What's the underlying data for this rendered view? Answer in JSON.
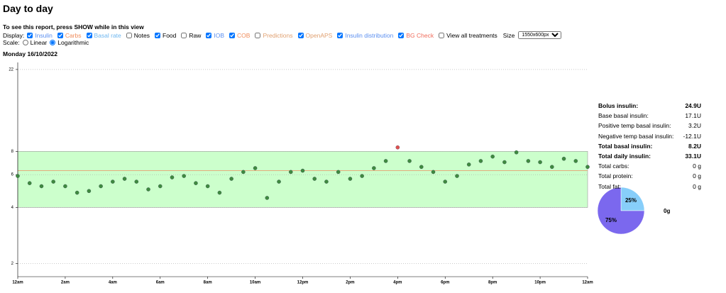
{
  "header": {
    "title": "Day to day"
  },
  "report": {
    "instruction": "To see this report, press SHOW while in this view"
  },
  "display": {
    "label": "Display:",
    "options": [
      {
        "label": "Insulin",
        "checked": true,
        "color": "#5b8ff0"
      },
      {
        "label": "Carbs",
        "checked": true,
        "color": "#f08c5b"
      },
      {
        "label": "Basal rate",
        "checked": true,
        "color": "#6fb7f0"
      },
      {
        "label": "Notes",
        "checked": false,
        "color": "#000000"
      },
      {
        "label": "Food",
        "checked": true,
        "color": "#000000"
      },
      {
        "label": "Raw",
        "checked": false,
        "color": "#000000"
      },
      {
        "label": "IOB",
        "checked": true,
        "color": "#5b8ff0"
      },
      {
        "label": "COB",
        "checked": true,
        "color": "#f08c5b"
      },
      {
        "label": "Predictions",
        "checked": false,
        "color": "#e0a070"
      },
      {
        "label": "OpenAPS",
        "checked": true,
        "color": "#e0a070"
      },
      {
        "label": "Insulin distribution",
        "checked": true,
        "color": "#5b8ff0"
      },
      {
        "label": "BG Check",
        "checked": true,
        "color": "#f06c5b"
      },
      {
        "label": "View all treatments",
        "checked": false,
        "color": "#000000"
      }
    ],
    "size_label": "Size",
    "size_value": "1550x600px"
  },
  "scale": {
    "label": "Scale:",
    "options": [
      {
        "label": "Linear",
        "checked": false
      },
      {
        "label": "Logarithmic",
        "checked": true
      }
    ]
  },
  "date": "Monday 16/10/2022",
  "chart_data": {
    "type": "scatter",
    "log_scale": true,
    "x": [
      0,
      0.5,
      1,
      1.5,
      2,
      2.5,
      3,
      3.5,
      4,
      4.5,
      5,
      5.5,
      6,
      6.5,
      7,
      7.5,
      8,
      8.5,
      9,
      9.5,
      10,
      10.5,
      11,
      11.5,
      12,
      12.5,
      13,
      13.5,
      14,
      14.5,
      15,
      15.5,
      16,
      16.5,
      17,
      17.5,
      18,
      18.5,
      19,
      19.5,
      20,
      20.5,
      21,
      21.5,
      22,
      22.5,
      23,
      23.5,
      24
    ],
    "values": [
      5.9,
      5.4,
      5.2,
      5.5,
      5.2,
      4.8,
      4.9,
      5.2,
      5.5,
      5.7,
      5.5,
      5.0,
      5.2,
      5.8,
      5.9,
      5.4,
      5.2,
      4.8,
      5.7,
      6.2,
      6.5,
      4.5,
      5.5,
      6.2,
      6.3,
      5.7,
      5.5,
      6.2,
      5.7,
      5.9,
      6.5,
      7.1,
      8.4,
      7.1,
      6.6,
      6.2,
      5.5,
      5.9,
      6.8,
      7.1,
      7.5,
      7.0,
      7.9,
      7.1,
      7.0,
      6.6,
      7.3,
      7.1,
      6.6
    ],
    "color": "#3f8a3f",
    "high_color": "#e05050",
    "target_range": [
      4,
      8
    ],
    "target_color": "#ccffcc",
    "target_line": 6.3,
    "target_line_color": "#e8a070",
    "xlim": [
      0,
      24
    ],
    "xticks": [
      {
        "value": 0,
        "label": "12am"
      },
      {
        "value": 2,
        "label": "2am"
      },
      {
        "value": 4,
        "label": "4am"
      },
      {
        "value": 6,
        "label": "6am"
      },
      {
        "value": 8,
        "label": "8am"
      },
      {
        "value": 10,
        "label": "10am"
      },
      {
        "value": 12,
        "label": "12pm"
      },
      {
        "value": 14,
        "label": "2pm"
      },
      {
        "value": 16,
        "label": "4pm"
      },
      {
        "value": 18,
        "label": "6pm"
      },
      {
        "value": 20,
        "label": "8pm"
      },
      {
        "value": 22,
        "label": "10pm"
      },
      {
        "value": 24,
        "label": "12am"
      }
    ],
    "ylim": [
      1.7,
      24
    ],
    "yticks": [
      2,
      4,
      6,
      8,
      22
    ],
    "grid": true
  },
  "stats": {
    "rows": [
      {
        "label": "Bolus insulin:",
        "value": "24.9U",
        "bold": true
      },
      {
        "label": "Base basal insulin:",
        "value": "17.1U",
        "bold": false
      },
      {
        "label": "Positive temp basal insulin:",
        "value": "3.2U",
        "bold": false
      },
      {
        "label": "Negative temp basal insulin:",
        "value": "-12.1U",
        "bold": false
      },
      {
        "label": "Total basal insulin:",
        "value": "8.2U",
        "bold": true
      },
      {
        "label": "Total daily insulin:",
        "value": "33.1U",
        "bold": true
      },
      {
        "label": "Total carbs:",
        "value": "0 g",
        "bold": false
      },
      {
        "label": "Total protein:",
        "value": "0 g",
        "bold": false
      },
      {
        "label": "Total fat:",
        "value": "0 g",
        "bold": false
      }
    ]
  },
  "pie": {
    "type": "pie",
    "values": [
      25,
      75
    ],
    "value_labels": [
      "25%",
      "75%"
    ],
    "colors": [
      "#87cefa",
      "#7b68ee"
    ],
    "side_label": "0g"
  }
}
